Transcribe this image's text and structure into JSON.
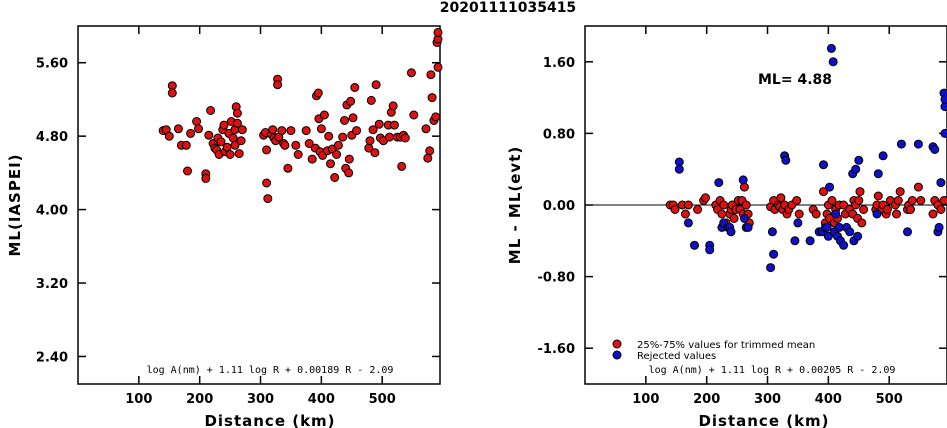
{
  "title": "20201111035415",
  "colors": {
    "kept": "#dd1111",
    "rejected": "#1010c8",
    "outline": "#000000"
  },
  "chart_data": [
    {
      "type": "scatter",
      "xlabel": "Distance (km)",
      "ylabel": "ML(IASPEI)",
      "xlim": [
        0,
        595
      ],
      "ylim": [
        2.1,
        6.0
      ],
      "xticks": [
        100,
        200,
        300,
        400,
        500
      ],
      "yticks": [
        2.4,
        3.2,
        4.0,
        4.8,
        5.6
      ],
      "ytick_labels": [
        "2.40",
        "3.20",
        "4.00",
        "4.80",
        "5.60"
      ],
      "formula": "log A(nm) + 1.11 log R + 0.00189 R - 2.09",
      "series": [
        {
          "color": "red",
          "points": [
            [
              140,
              4.86
            ],
            [
              145,
              4.87
            ],
            [
              150,
              4.8
            ],
            [
              155,
              5.35
            ],
            [
              155,
              5.27
            ],
            [
              165,
              4.88
            ],
            [
              170,
              4.7
            ],
            [
              178,
              4.7
            ],
            [
              180,
              4.42
            ],
            [
              185,
              4.83
            ],
            [
              195,
              4.96
            ],
            [
              198,
              4.88
            ],
            [
              210,
              4.39
            ],
            [
              210,
              4.34
            ],
            [
              215,
              4.81
            ],
            [
              218,
              5.08
            ],
            [
              222,
              4.72
            ],
            [
              225,
              4.67
            ],
            [
              228,
              4.65
            ],
            [
              230,
              4.78
            ],
            [
              232,
              4.6
            ],
            [
              235,
              4.74
            ],
            [
              238,
              4.87
            ],
            [
              240,
              4.92
            ],
            [
              242,
              4.63
            ],
            [
              245,
              4.68
            ],
            [
              248,
              4.83
            ],
            [
              250,
              4.6
            ],
            [
              252,
              4.96
            ],
            [
              255,
              4.78
            ],
            [
              258,
              4.7
            ],
            [
              258,
              4.87
            ],
            [
              260,
              5.12
            ],
            [
              262,
              5.05
            ],
            [
              262,
              4.94
            ],
            [
              265,
              4.61
            ],
            [
              268,
              4.75
            ],
            [
              270,
              4.87
            ],
            [
              305,
              4.81
            ],
            [
              308,
              4.84
            ],
            [
              310,
              4.65
            ],
            [
              310,
              4.29
            ],
            [
              312,
              4.12
            ],
            [
              318,
              4.82
            ],
            [
              320,
              4.87
            ],
            [
              322,
              4.78
            ],
            [
              325,
              4.75
            ],
            [
              328,
              5.42
            ],
            [
              328,
              5.36
            ],
            [
              330,
              4.79
            ],
            [
              335,
              4.86
            ],
            [
              338,
              4.72
            ],
            [
              340,
              4.7
            ],
            [
              345,
              4.45
            ],
            [
              350,
              4.86
            ],
            [
              358,
              4.7
            ],
            [
              362,
              4.6
            ],
            [
              375,
              4.86
            ],
            [
              380,
              4.72
            ],
            [
              385,
              4.55
            ],
            [
              390,
              4.67
            ],
            [
              392,
              5.24
            ],
            [
              395,
              5.27
            ],
            [
              396,
              4.99
            ],
            [
              398,
              4.63
            ],
            [
              400,
              4.88
            ],
            [
              402,
              4.59
            ],
            [
              405,
              5.03
            ],
            [
              410,
              4.64
            ],
            [
              412,
              4.8
            ],
            [
              415,
              4.5
            ],
            [
              418,
              4.66
            ],
            [
              422,
              4.35
            ],
            [
              425,
              4.6
            ],
            [
              428,
              4.7
            ],
            [
              435,
              4.79
            ],
            [
              438,
              4.97
            ],
            [
              440,
              4.45
            ],
            [
              442,
              5.14
            ],
            [
              445,
              4.4
            ],
            [
              446,
              4.55
            ],
            [
              448,
              5.18
            ],
            [
              450,
              4.81
            ],
            [
              452,
              5.0
            ],
            [
              455,
              5.33
            ],
            [
              458,
              4.86
            ],
            [
              478,
              4.67
            ],
            [
              480,
              4.75
            ],
            [
              482,
              5.19
            ],
            [
              485,
              4.87
            ],
            [
              488,
              4.62
            ],
            [
              490,
              5.36
            ],
            [
              495,
              4.93
            ],
            [
              497,
              4.78
            ],
            [
              502,
              4.75
            ],
            [
              510,
              4.92
            ],
            [
              512,
              4.79
            ],
            [
              515,
              5.06
            ],
            [
              518,
              5.13
            ],
            [
              520,
              4.92
            ],
            [
              525,
              4.79
            ],
            [
              530,
              4.79
            ],
            [
              532,
              4.47
            ],
            [
              535,
              4.81
            ],
            [
              538,
              4.78
            ],
            [
              548,
              5.49
            ],
            [
              552,
              5.03
            ],
            [
              572,
              4.88
            ],
            [
              575,
              4.56
            ],
            [
              578,
              4.64
            ],
            [
              580,
              5.47
            ],
            [
              582,
              5.22
            ],
            [
              585,
              4.97
            ],
            [
              588,
              5.01
            ],
            [
              590,
              5.82
            ],
            [
              593,
              5.86
            ],
            [
              595,
              5.93
            ],
            [
              597,
              5.55
            ]
          ]
        }
      ]
    },
    {
      "type": "scatter",
      "xlabel": "Distance (km)",
      "ylabel": "ML - ML(evt)",
      "xlim": [
        0,
        595
      ],
      "ylim": [
        -2.0,
        2.0
      ],
      "xticks": [
        100,
        200,
        300,
        400,
        500
      ],
      "yticks": [
        -1.6,
        -0.8,
        0.0,
        0.8,
        1.6
      ],
      "ytick_labels": [
        "-1.60",
        "-0.80",
        "0.00",
        "0.80",
        "1.60"
      ],
      "reference_line": 0.0,
      "annotation": "ML= 4.88",
      "formula": "log A(nm) + 1.11 log R + 0.00205 R - 2.09",
      "legend": {
        "placement": "bottom-left",
        "entries": [
          "25%-75% values for trimmed mean",
          "Rejected values"
        ]
      },
      "series": [
        {
          "label": "25%-75% values for trimmed mean",
          "color": "red",
          "points": [
            [
              140,
              0.0
            ],
            [
              145,
              0.0
            ],
            [
              148,
              -0.05
            ],
            [
              160,
              0.0
            ],
            [
              165,
              -0.1
            ],
            [
              170,
              0.0
            ],
            [
              185,
              -0.05
            ],
            [
              195,
              0.05
            ],
            [
              198,
              0.08
            ],
            [
              215,
              0.0
            ],
            [
              218,
              -0.05
            ],
            [
              222,
              0.05
            ],
            [
              225,
              -0.1
            ],
            [
              228,
              0.0
            ],
            [
              232,
              -0.2
            ],
            [
              238,
              -0.1
            ],
            [
              240,
              -0.05
            ],
            [
              242,
              0.0
            ],
            [
              245,
              -0.15
            ],
            [
              248,
              -0.05
            ],
            [
              252,
              0.05
            ],
            [
              255,
              -0.05
            ],
            [
              258,
              0.05
            ],
            [
              260,
              -0.1
            ],
            [
              262,
              0.2
            ],
            [
              265,
              0.0
            ],
            [
              268,
              -0.1
            ],
            [
              270,
              -0.2
            ],
            [
              305,
              -0.02
            ],
            [
              310,
              0.05
            ],
            [
              312,
              -0.05
            ],
            [
              318,
              0.0
            ],
            [
              320,
              -0.02
            ],
            [
              322,
              0.08
            ],
            [
              325,
              -0.05
            ],
            [
              328,
              0.0
            ],
            [
              332,
              -0.1
            ],
            [
              335,
              -0.05
            ],
            [
              340,
              0.0
            ],
            [
              348,
              0.05
            ],
            [
              352,
              -0.1
            ],
            [
              375,
              -0.05
            ],
            [
              380,
              -0.1
            ],
            [
              392,
              0.15
            ],
            [
              395,
              -0.2
            ],
            [
              398,
              -0.1
            ],
            [
              400,
              0.0
            ],
            [
              402,
              -0.15
            ],
            [
              406,
              0.05
            ],
            [
              410,
              -0.2
            ],
            [
              412,
              -0.05
            ],
            [
              415,
              -0.15
            ],
            [
              418,
              0.0
            ],
            [
              425,
              0.0
            ],
            [
              428,
              -0.1
            ],
            [
              435,
              -0.05
            ],
            [
              440,
              -0.1
            ],
            [
              442,
              0.05
            ],
            [
              445,
              0.0
            ],
            [
              448,
              -0.15
            ],
            [
              450,
              0.05
            ],
            [
              452,
              0.15
            ],
            [
              455,
              -0.2
            ],
            [
              458,
              -0.05
            ],
            [
              478,
              -0.05
            ],
            [
              480,
              0.0
            ],
            [
              482,
              0.1
            ],
            [
              488,
              -0.05
            ],
            [
              490,
              0.0
            ],
            [
              495,
              -0.1
            ],
            [
              497,
              -0.05
            ],
            [
              502,
              0.05
            ],
            [
              510,
              0.0
            ],
            [
              512,
              -0.1
            ],
            [
              515,
              0.05
            ],
            [
              518,
              0.15
            ],
            [
              530,
              -0.05
            ],
            [
              532,
              0.0
            ],
            [
              535,
              -0.05
            ],
            [
              538,
              0.05
            ],
            [
              548,
              0.2
            ],
            [
              552,
              0.05
            ],
            [
              572,
              -0.1
            ],
            [
              575,
              0.05
            ],
            [
              580,
              0.0
            ],
            [
              585,
              -0.05
            ],
            [
              590,
              0.05
            ]
          ]
        },
        {
          "label": "Rejected values",
          "color": "blue",
          "points": [
            [
              155,
              0.48
            ],
            [
              155,
              0.4
            ],
            [
              170,
              -0.2
            ],
            [
              180,
              -0.45
            ],
            [
              205,
              -0.45
            ],
            [
              205,
              -0.5
            ],
            [
              220,
              0.25
            ],
            [
              225,
              -0.25
            ],
            [
              228,
              -0.2
            ],
            [
              235,
              -0.25
            ],
            [
              238,
              -0.25
            ],
            [
              240,
              -0.3
            ],
            [
              260,
              0.28
            ],
            [
              262,
              -0.15
            ],
            [
              265,
              -0.25
            ],
            [
              268,
              -0.25
            ],
            [
              305,
              -0.7
            ],
            [
              308,
              -0.3
            ],
            [
              310,
              -0.55
            ],
            [
              328,
              0.55
            ],
            [
              330,
              0.5
            ],
            [
              345,
              -0.4
            ],
            [
              350,
              -0.2
            ],
            [
              370,
              -0.4
            ],
            [
              385,
              -0.3
            ],
            [
              390,
              -0.3
            ],
            [
              392,
              0.45
            ],
            [
              395,
              -0.25
            ],
            [
              398,
              -0.25
            ],
            [
              400,
              -0.35
            ],
            [
              402,
              0.2
            ],
            [
              405,
              1.75
            ],
            [
              408,
              1.6
            ],
            [
              410,
              -0.3
            ],
            [
              412,
              -0.1
            ],
            [
              415,
              -0.35
            ],
            [
              418,
              -0.25
            ],
            [
              420,
              -0.4
            ],
            [
              425,
              -0.45
            ],
            [
              430,
              -0.25
            ],
            [
              435,
              -0.3
            ],
            [
              440,
              0.35
            ],
            [
              442,
              -0.4
            ],
            [
              445,
              0.4
            ],
            [
              448,
              -0.35
            ],
            [
              450,
              0.5
            ],
            [
              480,
              -0.1
            ],
            [
              482,
              0.35
            ],
            [
              490,
              0.55
            ],
            [
              520,
              0.68
            ],
            [
              530,
              -0.3
            ],
            [
              548,
              0.68
            ],
            [
              572,
              0.65
            ],
            [
              575,
              0.62
            ],
            [
              580,
              -0.3
            ],
            [
              582,
              -0.25
            ],
            [
              585,
              0.25
            ],
            [
              590,
              1.25
            ],
            [
              592,
              1.1
            ],
            [
              595,
              1.18
            ],
            [
              597,
              0.8
            ]
          ]
        }
      ]
    }
  ]
}
